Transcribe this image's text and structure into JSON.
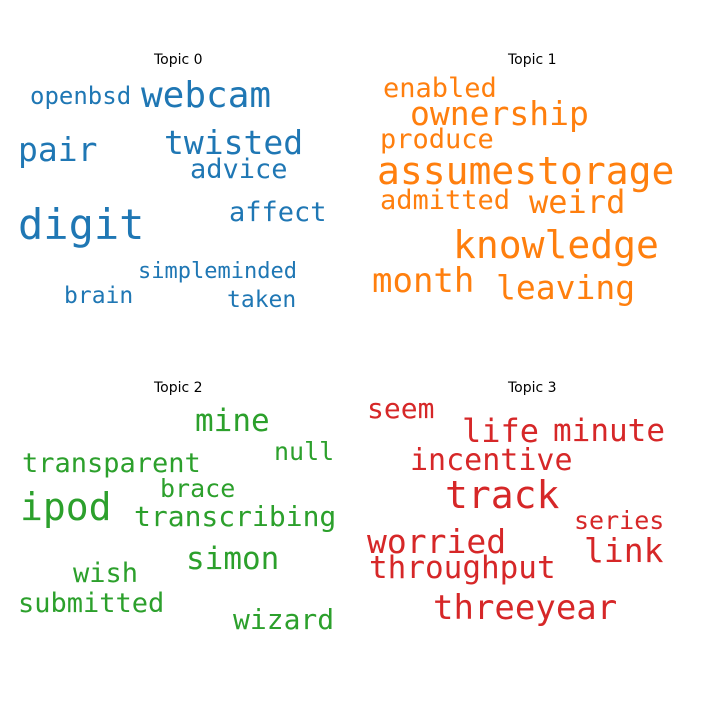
{
  "colors": {
    "topic_0": "#1f77b4",
    "topic_1": "#ff7f0e",
    "topic_2": "#2ca02c",
    "topic_3": "#d62728"
  },
  "topics": [
    {
      "title": "Topic 0",
      "words": [
        "openbsd",
        "webcam",
        "pair",
        "twisted",
        "advice",
        "digit",
        "affect",
        "simpleminded",
        "brain",
        "taken"
      ]
    },
    {
      "title": "Topic 1",
      "words": [
        "enabled",
        "ownership",
        "produce",
        "assumestorage",
        "admitted",
        "weird",
        "knowledge",
        "month",
        "leaving"
      ]
    },
    {
      "title": "Topic 2",
      "words": [
        "mine",
        "null",
        "transparent",
        "ipod",
        "brace",
        "transcribing",
        "simon",
        "wish",
        "submitted",
        "wizard"
      ]
    },
    {
      "title": "Topic 3",
      "words": [
        "seem",
        "life",
        "minute",
        "incentive",
        "track",
        "series",
        "worried",
        "link",
        "throughput",
        "threeyear"
      ]
    }
  ]
}
